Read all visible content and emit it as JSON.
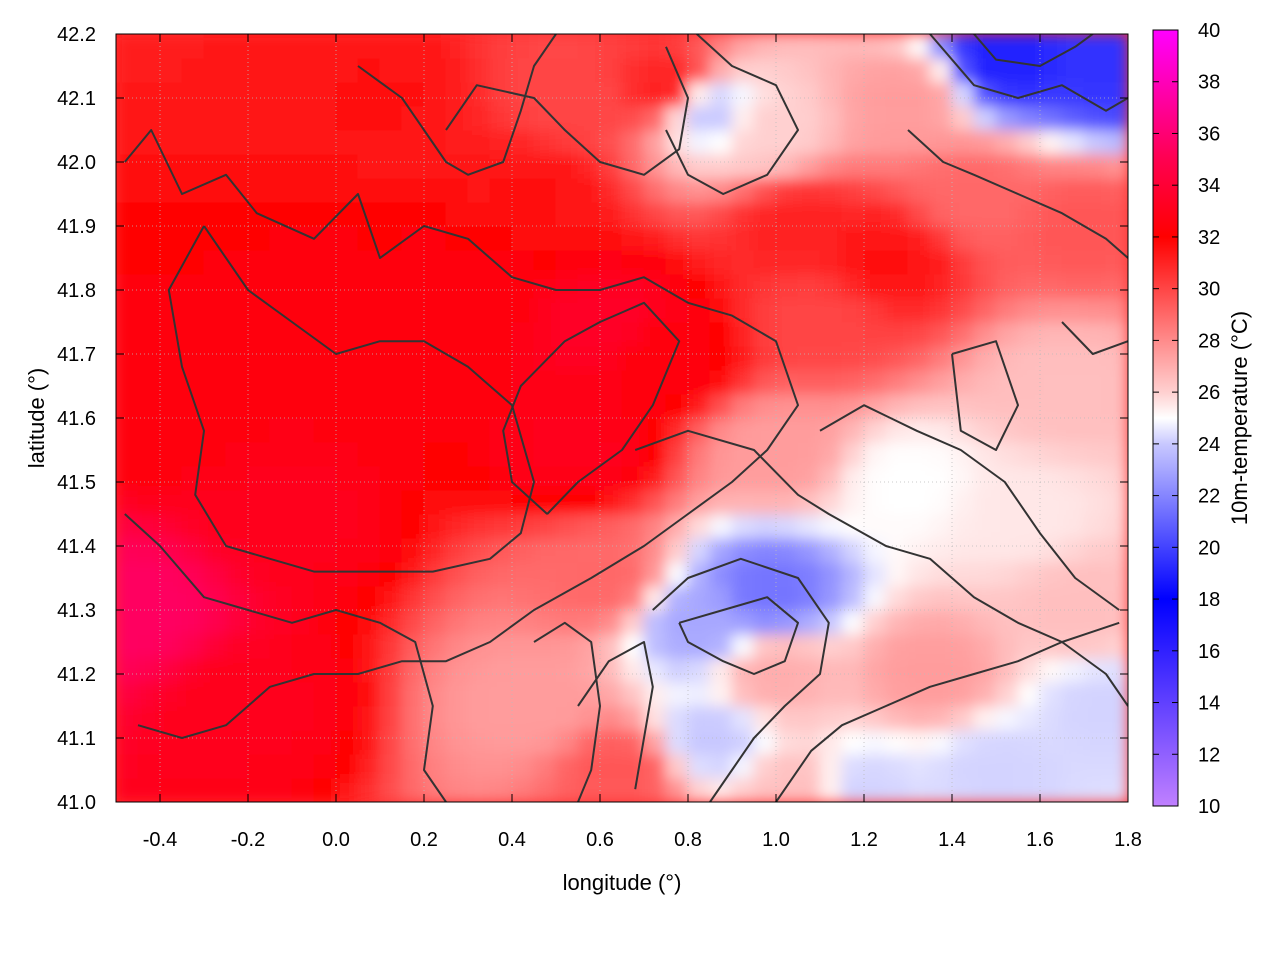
{
  "chart_data": {
    "type": "heatmap",
    "title": "",
    "xlabel": "longitude (°)",
    "ylabel": "latitude (°)",
    "colorbar_label": "10m-temperature (°C)",
    "xlim": [
      -0.5,
      1.8
    ],
    "ylim": [
      41.0,
      42.2
    ],
    "x_ticks": [
      -0.4,
      -0.2,
      0.0,
      0.2,
      0.4,
      0.6,
      0.8,
      1.0,
      1.2,
      1.4,
      1.6,
      1.8
    ],
    "x_tick_labels": [
      "-0.4",
      "-0.2",
      "0.0",
      "0.2",
      "0.4",
      "0.6",
      "0.8",
      "1.0",
      "1.2",
      "1.4",
      "1.6",
      "1.8"
    ],
    "y_ticks": [
      41.0,
      41.1,
      41.2,
      41.3,
      41.4,
      41.5,
      41.6,
      41.7,
      41.8,
      41.9,
      42.0,
      42.1,
      42.2
    ],
    "y_tick_labels": [
      "41.0",
      "41.1",
      "41.2",
      "41.3",
      "41.4",
      "41.5",
      "41.6",
      "41.7",
      "41.8",
      "41.9",
      "42.0",
      "42.1",
      "42.2"
    ],
    "colorbar_range": [
      10,
      40
    ],
    "colorbar_ticks": [
      10,
      12,
      14,
      16,
      18,
      20,
      22,
      24,
      26,
      28,
      30,
      32,
      34,
      36,
      38,
      40
    ],
    "colorbar_tick_labels": [
      "10",
      "12",
      "14",
      "16",
      "18",
      "20",
      "22",
      "24",
      "26",
      "28",
      "30",
      "32",
      "34",
      "36",
      "38",
      "40"
    ],
    "colormap": [
      {
        "value": 10,
        "color": "#c080ff"
      },
      {
        "value": 18,
        "color": "#0000ff"
      },
      {
        "value": 24,
        "color": "#c8c8ff"
      },
      {
        "value": 25,
        "color": "#ffffff"
      },
      {
        "value": 26,
        "color": "#ffd0d0"
      },
      {
        "value": 32,
        "color": "#ff0000"
      },
      {
        "value": 35,
        "color": "#ff0050"
      },
      {
        "value": 40,
        "color": "#ff00ff"
      }
    ],
    "grid": true,
    "contour_color": "#333333",
    "field_samples": [
      {
        "lon": -0.45,
        "lat": 41.3,
        "t": 35.5
      },
      {
        "lon": -0.4,
        "lat": 41.6,
        "t": 32.5
      },
      {
        "lon": -0.2,
        "lat": 41.15,
        "t": 33.0
      },
      {
        "lon": -0.1,
        "lat": 41.45,
        "t": 33.0
      },
      {
        "lon": 0.0,
        "lat": 41.75,
        "t": 32.5
      },
      {
        "lon": 0.1,
        "lat": 42.1,
        "t": 31.5
      },
      {
        "lon": 0.3,
        "lat": 41.8,
        "t": 32.5
      },
      {
        "lon": 0.45,
        "lat": 41.95,
        "t": 31.5
      },
      {
        "lon": 0.55,
        "lat": 41.55,
        "t": 33.0
      },
      {
        "lon": 0.62,
        "lat": 41.75,
        "t": 33.5
      },
      {
        "lon": 0.75,
        "lat": 41.7,
        "t": 32.5
      },
      {
        "lon": 0.6,
        "lat": 41.35,
        "t": 29.0
      },
      {
        "lon": 0.45,
        "lat": 41.15,
        "t": 27.5
      },
      {
        "lon": 0.65,
        "lat": 41.05,
        "t": 29.5
      },
      {
        "lon": 0.55,
        "lat": 42.1,
        "t": 30.0
      },
      {
        "lon": 0.75,
        "lat": 42.12,
        "t": 31.0
      },
      {
        "lon": 0.98,
        "lat": 42.05,
        "t": 26.0
      },
      {
        "lon": 0.85,
        "lat": 42.08,
        "t": 24.0
      },
      {
        "lon": 1.05,
        "lat": 41.9,
        "t": 31.0
      },
      {
        "lon": 1.25,
        "lat": 41.85,
        "t": 31.5
      },
      {
        "lon": 1.3,
        "lat": 42.1,
        "t": 27.5
      },
      {
        "lon": 1.52,
        "lat": 42.16,
        "t": 19.0
      },
      {
        "lon": 1.75,
        "lat": 42.15,
        "t": 19.5
      },
      {
        "lon": 1.45,
        "lat": 41.95,
        "t": 29.0
      },
      {
        "lon": 1.7,
        "lat": 41.9,
        "t": 29.5
      },
      {
        "lon": 1.65,
        "lat": 41.65,
        "t": 26.5
      },
      {
        "lon": 1.3,
        "lat": 41.5,
        "t": 25.0
      },
      {
        "lon": 1.55,
        "lat": 41.45,
        "t": 25.5
      },
      {
        "lon": 1.0,
        "lat": 41.55,
        "t": 27.5
      },
      {
        "lon": 1.1,
        "lat": 41.75,
        "t": 30.0
      },
      {
        "lon": 0.98,
        "lat": 41.33,
        "t": 21.5
      },
      {
        "lon": 0.83,
        "lat": 41.28,
        "t": 23.0
      },
      {
        "lon": 0.85,
        "lat": 41.1,
        "t": 24.0
      },
      {
        "lon": 1.0,
        "lat": 41.2,
        "t": 27.0
      },
      {
        "lon": 1.35,
        "lat": 41.2,
        "t": 27.5
      },
      {
        "lon": 1.7,
        "lat": 41.3,
        "t": 26.5
      },
      {
        "lon": 1.5,
        "lat": 41.05,
        "t": 24.2
      },
      {
        "lon": 1.2,
        "lat": 41.02,
        "t": 24.2
      },
      {
        "lon": 1.75,
        "lat": 41.15,
        "t": 24.2
      },
      {
        "lon": 1.05,
        "lat": 41.02,
        "t": 26.5
      }
    ],
    "contour_lines": [
      [
        [
          -0.48,
          42.0
        ],
        [
          -0.42,
          42.05
        ],
        [
          -0.35,
          41.95
        ],
        [
          -0.25,
          41.98
        ],
        [
          -0.18,
          41.92
        ],
        [
          -0.05,
          41.88
        ],
        [
          0.05,
          41.95
        ],
        [
          0.1,
          41.85
        ],
        [
          0.2,
          41.9
        ],
        [
          0.3,
          41.88
        ],
        [
          0.4,
          41.82
        ],
        [
          0.5,
          41.8
        ],
        [
          0.6,
          41.8
        ],
        [
          0.7,
          41.82
        ],
        [
          0.8,
          41.78
        ],
        [
          0.9,
          41.76
        ],
        [
          1.0,
          41.72
        ],
        [
          1.05,
          41.62
        ],
        [
          0.98,
          41.55
        ],
        [
          0.9,
          41.5
        ],
        [
          0.8,
          41.45
        ],
        [
          0.7,
          41.4
        ],
        [
          0.58,
          41.35
        ],
        [
          0.45,
          41.3
        ],
        [
          0.35,
          41.25
        ],
        [
          0.25,
          41.22
        ],
        [
          0.15,
          41.22
        ],
        [
          0.05,
          41.2
        ],
        [
          -0.05,
          41.2
        ],
        [
          -0.15,
          41.18
        ],
        [
          -0.25,
          41.12
        ],
        [
          -0.35,
          41.1
        ],
        [
          -0.45,
          41.12
        ]
      ],
      [
        [
          -0.3,
          41.9
        ],
        [
          -0.2,
          41.8
        ],
        [
          -0.1,
          41.75
        ],
        [
          0.0,
          41.7
        ],
        [
          0.1,
          41.72
        ],
        [
          0.2,
          41.72
        ],
        [
          0.3,
          41.68
        ],
        [
          0.4,
          41.62
        ],
        [
          0.45,
          41.5
        ],
        [
          0.42,
          41.42
        ],
        [
          0.35,
          41.38
        ],
        [
          0.22,
          41.36
        ],
        [
          0.1,
          41.36
        ],
        [
          -0.05,
          41.36
        ],
        [
          -0.15,
          41.38
        ],
        [
          -0.25,
          41.4
        ],
        [
          -0.32,
          41.48
        ],
        [
          -0.3,
          41.58
        ],
        [
          -0.35,
          41.68
        ],
        [
          -0.38,
          41.8
        ],
        [
          -0.3,
          41.9
        ]
      ],
      [
        [
          0.48,
          41.45
        ],
        [
          0.55,
          41.5
        ],
        [
          0.65,
          41.55
        ],
        [
          0.72,
          41.62
        ],
        [
          0.78,
          41.72
        ],
        [
          0.7,
          41.78
        ],
        [
          0.6,
          41.75
        ],
        [
          0.52,
          41.72
        ],
        [
          0.42,
          41.65
        ],
        [
          0.38,
          41.58
        ],
        [
          0.4,
          41.5
        ],
        [
          0.48,
          41.45
        ]
      ],
      [
        [
          0.25,
          42.05
        ],
        [
          0.32,
          42.12
        ],
        [
          0.45,
          42.1
        ],
        [
          0.52,
          42.05
        ],
        [
          0.6,
          42.0
        ],
        [
          0.7,
          41.98
        ],
        [
          0.78,
          42.02
        ],
        [
          0.8,
          42.1
        ],
        [
          0.75,
          42.18
        ]
      ],
      [
        [
          0.82,
          42.2
        ],
        [
          0.9,
          42.15
        ],
        [
          1.0,
          42.12
        ],
        [
          1.05,
          42.05
        ],
        [
          0.98,
          41.98
        ],
        [
          0.88,
          41.95
        ],
        [
          0.8,
          41.98
        ],
        [
          0.75,
          42.05
        ]
      ],
      [
        [
          0.68,
          41.55
        ],
        [
          0.8,
          41.58
        ],
        [
          0.95,
          41.55
        ],
        [
          1.05,
          41.48
        ],
        [
          1.12,
          41.45
        ],
        [
          1.25,
          41.4
        ],
        [
          1.35,
          41.38
        ],
        [
          1.45,
          41.32
        ],
        [
          1.55,
          41.28
        ],
        [
          1.65,
          41.25
        ],
        [
          1.75,
          41.2
        ],
        [
          1.8,
          41.15
        ]
      ],
      [
        [
          1.1,
          41.58
        ],
        [
          1.2,
          41.62
        ],
        [
          1.32,
          41.58
        ],
        [
          1.42,
          41.55
        ],
        [
          1.52,
          41.5
        ],
        [
          1.6,
          41.42
        ],
        [
          1.68,
          41.35
        ],
        [
          1.78,
          41.3
        ]
      ],
      [
        [
          0.72,
          41.3
        ],
        [
          0.8,
          41.35
        ],
        [
          0.92,
          41.38
        ],
        [
          1.05,
          41.35
        ],
        [
          1.12,
          41.28
        ],
        [
          1.1,
          41.2
        ],
        [
          1.02,
          41.15
        ],
        [
          0.95,
          41.1
        ],
        [
          0.9,
          41.05
        ],
        [
          0.85,
          41.0
        ]
      ],
      [
        [
          0.78,
          41.28
        ],
        [
          0.88,
          41.3
        ],
        [
          0.98,
          41.32
        ],
        [
          1.05,
          41.28
        ],
        [
          1.02,
          41.22
        ],
        [
          0.95,
          41.2
        ],
        [
          0.88,
          41.22
        ],
        [
          0.8,
          41.25
        ],
        [
          0.78,
          41.28
        ]
      ],
      [
        [
          1.0,
          41.0
        ],
        [
          1.08,
          41.08
        ],
        [
          1.15,
          41.12
        ],
        [
          1.25,
          41.15
        ],
        [
          1.35,
          41.18
        ],
        [
          1.45,
          41.2
        ],
        [
          1.55,
          41.22
        ],
        [
          1.65,
          41.25
        ],
        [
          1.78,
          41.28
        ]
      ],
      [
        [
          0.55,
          41.15
        ],
        [
          0.62,
          41.22
        ],
        [
          0.7,
          41.25
        ],
        [
          0.72,
          41.18
        ],
        [
          0.7,
          41.1
        ],
        [
          0.68,
          41.02
        ]
      ],
      [
        [
          1.3,
          42.05
        ],
        [
          1.38,
          42.0
        ],
        [
          1.45,
          41.98
        ],
        [
          1.55,
          41.95
        ],
        [
          1.65,
          41.92
        ],
        [
          1.75,
          41.88
        ],
        [
          1.8,
          41.85
        ]
      ],
      [
        [
          1.35,
          42.2
        ],
        [
          1.45,
          42.12
        ],
        [
          1.55,
          42.1
        ],
        [
          1.65,
          42.12
        ],
        [
          1.75,
          42.08
        ],
        [
          1.8,
          42.1
        ]
      ],
      [
        [
          1.45,
          42.2
        ],
        [
          1.5,
          42.16
        ],
        [
          1.6,
          42.15
        ],
        [
          1.68,
          42.18
        ],
        [
          1.72,
          42.2
        ]
      ],
      [
        [
          -0.48,
          41.45
        ],
        [
          -0.4,
          41.4
        ],
        [
          -0.3,
          41.32
        ],
        [
          -0.2,
          41.3
        ],
        [
          -0.1,
          41.28
        ],
        [
          0.0,
          41.3
        ],
        [
          0.1,
          41.28
        ],
        [
          0.18,
          41.25
        ],
        [
          0.22,
          41.15
        ],
        [
          0.2,
          41.05
        ],
        [
          0.25,
          41.0
        ]
      ],
      [
        [
          0.45,
          41.25
        ],
        [
          0.52,
          41.28
        ],
        [
          0.58,
          41.25
        ],
        [
          0.6,
          41.15
        ],
        [
          0.58,
          41.05
        ],
        [
          0.55,
          41.0
        ]
      ],
      [
        [
          1.4,
          41.7
        ],
        [
          1.5,
          41.72
        ],
        [
          1.55,
          41.62
        ],
        [
          1.5,
          41.55
        ],
        [
          1.42,
          41.58
        ],
        [
          1.4,
          41.7
        ]
      ],
      [
        [
          1.65,
          41.75
        ],
        [
          1.72,
          41.7
        ],
        [
          1.8,
          41.72
        ]
      ],
      [
        [
          0.05,
          42.15
        ],
        [
          0.15,
          42.1
        ],
        [
          0.2,
          42.05
        ],
        [
          0.25,
          42.0
        ],
        [
          0.3,
          41.98
        ],
        [
          0.38,
          42.0
        ],
        [
          0.42,
          42.08
        ],
        [
          0.45,
          42.15
        ],
        [
          0.5,
          42.2
        ]
      ]
    ]
  }
}
